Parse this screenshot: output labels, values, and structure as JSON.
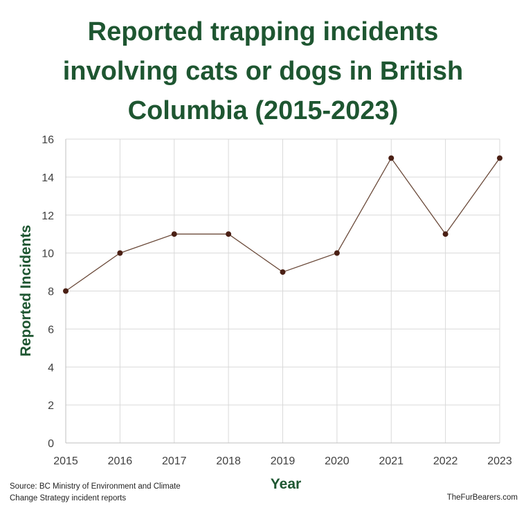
{
  "chart_data": {
    "type": "line",
    "title": "Reported trapping incidents involving cats or dogs in British Columbia (2015-2023)",
    "xlabel": "Year",
    "ylabel": "Reported Incidents",
    "x": [
      "2015",
      "2016",
      "2017",
      "2018",
      "2019",
      "2020",
      "2021",
      "2022",
      "2023"
    ],
    "series": [
      {
        "values": [
          8,
          10,
          11,
          11,
          9,
          10,
          15,
          11,
          15
        ]
      }
    ],
    "ylim": [
      0,
      16
    ],
    "yticks": [
      "0",
      "2",
      "4",
      "6",
      "8",
      "10",
      "12",
      "14",
      "16"
    ],
    "grid": true,
    "legend": "none",
    "colors": {
      "title": "#1e5631",
      "line": "#6b4a3a",
      "marker": "#4a1f14",
      "grid": "#d9d9d9"
    }
  },
  "footer": {
    "source": "Source: BC Ministry of Environment and Climate Change Strategy incident reports",
    "credit": "TheFurBearers.com"
  }
}
